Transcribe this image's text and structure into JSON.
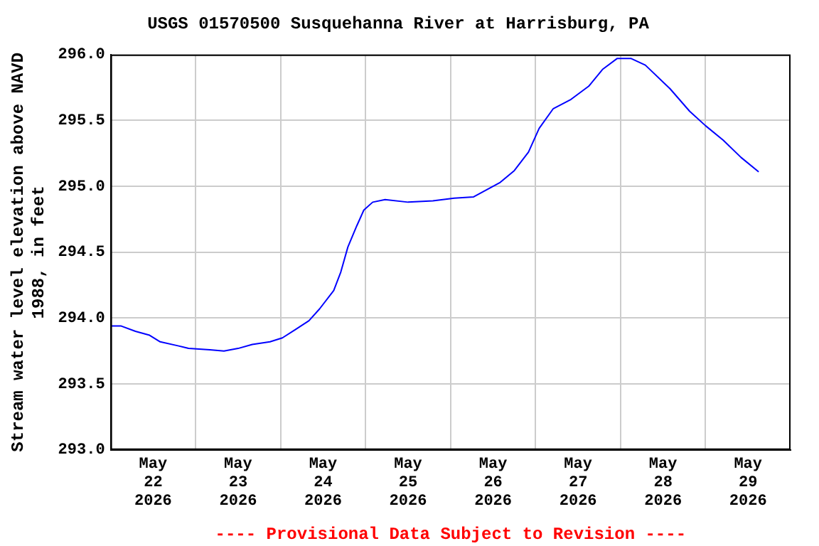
{
  "chart_data": {
    "type": "line",
    "title": "USGS 01570500 Susquehanna River at Harrisburg, PA",
    "ylabel": "Stream water level elevation above NAVD 1988, in feet",
    "annotations": [
      "---- Provisional Data Subject to Revision ----"
    ],
    "x": [
      "2026-05-22T00:00",
      "2026-05-22T03:00",
      "2026-05-22T07:00",
      "2026-05-22T11:00",
      "2026-05-22T14:00",
      "2026-05-22T19:00",
      "2026-05-22T22:00",
      "2026-05-23T04:00",
      "2026-05-23T08:00",
      "2026-05-23T12:00",
      "2026-05-23T16:00",
      "2026-05-23T21:00",
      "2026-05-24T00:30",
      "2026-05-24T04:00",
      "2026-05-24T08:00",
      "2026-05-24T11:00",
      "2026-05-24T15:00",
      "2026-05-24T17:00",
      "2026-05-24T19:00",
      "2026-05-24T21:30",
      "2026-05-24T23:30",
      "2026-05-25T02:00",
      "2026-05-25T05:30",
      "2026-05-25T12:00",
      "2026-05-25T19:00",
      "2026-05-26T01:00",
      "2026-05-26T06:30",
      "2026-05-26T14:00",
      "2026-05-26T18:00",
      "2026-05-26T22:00",
      "2026-05-27T01:00",
      "2026-05-27T05:00",
      "2026-05-27T10:00",
      "2026-05-27T15:00",
      "2026-05-27T19:00",
      "2026-05-27T23:00",
      "2026-05-28T03:00",
      "2026-05-28T07:00",
      "2026-05-28T14:00",
      "2026-05-28T19:30",
      "2026-05-29T00:00",
      "2026-05-29T05:00",
      "2026-05-29T10:00",
      "2026-05-29T15:00"
    ],
    "series": [
      {
        "color": "#0000ff",
        "values": [
          293.94,
          293.94,
          293.9,
          293.87,
          293.82,
          293.79,
          293.77,
          293.76,
          293.75,
          293.77,
          293.8,
          293.82,
          293.85,
          293.91,
          293.98,
          294.07,
          294.21,
          294.35,
          294.54,
          294.7,
          294.82,
          294.88,
          294.9,
          294.88,
          294.89,
          294.91,
          294.92,
          295.03,
          295.12,
          295.26,
          295.44,
          295.59,
          295.66,
          295.76,
          295.89,
          295.97,
          295.97,
          295.92,
          295.74,
          295.57,
          295.46,
          295.35,
          295.22,
          295.11
        ]
      }
    ],
    "xlim": [
      "2026-05-22T00:00",
      "2026-05-30T00:00"
    ],
    "xticks": [
      {
        "value": "2026-05-22T12:00",
        "label": "May 22 2026"
      },
      {
        "value": "2026-05-23T00:00",
        "label": null
      },
      {
        "value": "2026-05-23T12:00",
        "label": "May 23 2026"
      },
      {
        "value": "2026-05-24T00:00",
        "label": null
      },
      {
        "value": "2026-05-24T12:00",
        "label": "May 24 2026"
      },
      {
        "value": "2026-05-25T00:00",
        "label": null
      },
      {
        "value": "2026-05-25T12:00",
        "label": "May 25 2026"
      },
      {
        "value": "2026-05-26T00:00",
        "label": null
      },
      {
        "value": "2026-05-26T12:00",
        "label": "May 26 2026"
      },
      {
        "value": "2026-05-27T00:00",
        "label": null
      },
      {
        "value": "2026-05-27T12:00",
        "label": "May 27 2026"
      },
      {
        "value": "2026-05-28T00:00",
        "label": null
      },
      {
        "value": "2026-05-28T12:00",
        "label": "May 28 2026"
      },
      {
        "value": "2026-05-29T00:00",
        "label": null
      },
      {
        "value": "2026-05-29T12:00",
        "label": "May 29 2026"
      }
    ],
    "ylim": [
      293.0,
      296.0
    ],
    "yticks": [
      {
        "value": 293.0,
        "label": "293.0"
      },
      {
        "value": 293.5,
        "label": "293.5"
      },
      {
        "value": 294.0,
        "label": "294.0"
      },
      {
        "value": 294.5,
        "label": "294.5"
      },
      {
        "value": 295.0,
        "label": "295.0"
      },
      {
        "value": 295.5,
        "label": "295.5"
      },
      {
        "value": 296.0,
        "label": "296.0"
      }
    ],
    "grid": true,
    "legend": false,
    "marker": "none",
    "line_style": "solid"
  }
}
